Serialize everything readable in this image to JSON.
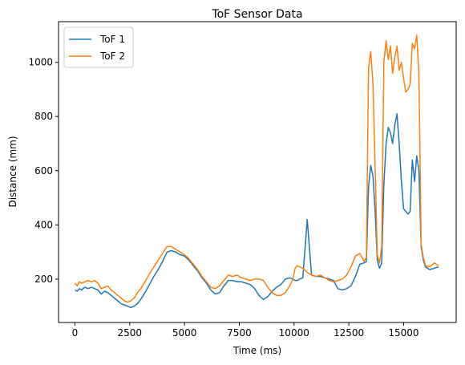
{
  "chart_data": {
    "type": "line",
    "title": "ToF Sensor Data",
    "xlabel": "Time (ms)",
    "ylabel": "Distance (mm)",
    "xlim": [
      -750,
      17400
    ],
    "ylim": [
      40,
      1150
    ],
    "xticks": [
      0,
      2500,
      5000,
      7500,
      10000,
      12500,
      15000
    ],
    "xtick_labels": [
      "0",
      "2500",
      "5000",
      "7500",
      "10000",
      "12500",
      "15000"
    ],
    "yticks": [
      200,
      400,
      600,
      800,
      1000
    ],
    "ytick_labels": [
      "200",
      "400",
      "600",
      "800",
      "1000"
    ],
    "grid": false,
    "legend_position": "top-left",
    "series": [
      {
        "name": "ToF 1",
        "color": "#1f77b4",
        "x": [
          0,
          100,
          200,
          300,
          450,
          600,
          750,
          900,
          1050,
          1200,
          1350,
          1500,
          1650,
          1800,
          1950,
          2100,
          2250,
          2400,
          2550,
          2700,
          2850,
          3000,
          3200,
          3400,
          3600,
          3800,
          4000,
          4200,
          4400,
          4600,
          4800,
          5000,
          5200,
          5400,
          5600,
          5800,
          6000,
          6200,
          6400,
          6600,
          6800,
          7000,
          7200,
          7400,
          7600,
          7800,
          8000,
          8200,
          8400,
          8600,
          8800,
          9000,
          9200,
          9400,
          9600,
          9800,
          9950,
          10050,
          10150,
          10250,
          10400,
          10600,
          10800,
          11000,
          11200,
          11400,
          11600,
          11800,
          12000,
          12200,
          12400,
          12600,
          12800,
          13000,
          13200,
          13300,
          13400,
          13500,
          13600,
          13700,
          13800,
          13900,
          14000,
          14100,
          14200,
          14300,
          14400,
          14500,
          14600,
          14700,
          14800,
          14900,
          15000,
          15100,
          15200,
          15300,
          15400,
          15500,
          15600,
          15700,
          15800,
          15900,
          16000,
          16200,
          16400,
          16600
        ],
        "y": [
          160,
          155,
          165,
          160,
          170,
          165,
          170,
          165,
          160,
          145,
          155,
          150,
          140,
          130,
          120,
          110,
          105,
          100,
          95,
          100,
          110,
          125,
          150,
          180,
          210,
          235,
          265,
          300,
          305,
          300,
          290,
          285,
          270,
          250,
          230,
          205,
          185,
          160,
          145,
          150,
          175,
          195,
          195,
          190,
          190,
          185,
          180,
          165,
          140,
          125,
          135,
          155,
          170,
          180,
          200,
          205,
          200,
          195,
          195,
          200,
          205,
          420,
          215,
          210,
          210,
          205,
          200,
          195,
          165,
          160,
          165,
          175,
          210,
          255,
          260,
          265,
          540,
          620,
          580,
          450,
          270,
          240,
          260,
          550,
          700,
          760,
          740,
          700,
          770,
          810,
          700,
          560,
          460,
          450,
          440,
          450,
          640,
          560,
          655,
          600,
          320,
          270,
          245,
          235,
          240,
          245
        ],
        "x_note": "sampled"
      },
      {
        "name": "ToF 2",
        "color": "#ff7f0e",
        "x": [
          0,
          100,
          200,
          300,
          450,
          600,
          750,
          900,
          1050,
          1200,
          1350,
          1500,
          1650,
          1800,
          1950,
          2100,
          2250,
          2400,
          2550,
          2700,
          2850,
          3000,
          3200,
          3400,
          3600,
          3800,
          4000,
          4200,
          4400,
          4600,
          4800,
          5000,
          5200,
          5400,
          5600,
          5800,
          6000,
          6200,
          6400,
          6600,
          6800,
          7000,
          7200,
          7400,
          7600,
          7800,
          8000,
          8200,
          8400,
          8600,
          8800,
          9000,
          9200,
          9400,
          9600,
          9800,
          9950,
          10050,
          10150,
          10250,
          10400,
          10600,
          10800,
          11000,
          11200,
          11400,
          11600,
          11800,
          12000,
          12200,
          12400,
          12600,
          12800,
          13000,
          13200,
          13300,
          13400,
          13500,
          13600,
          13700,
          13800,
          13900,
          14000,
          14100,
          14200,
          14300,
          14400,
          14500,
          14600,
          14700,
          14800,
          14900,
          15000,
          15100,
          15200,
          15300,
          15400,
          15500,
          15600,
          15700,
          15800,
          15900,
          16000,
          16200,
          16400,
          16600
        ],
        "y": [
          185,
          175,
          190,
          185,
          190,
          195,
          190,
          195,
          185,
          165,
          170,
          175,
          160,
          150,
          140,
          130,
          120,
          115,
          120,
          130,
          150,
          165,
          190,
          220,
          245,
          270,
          295,
          320,
          320,
          310,
          300,
          290,
          275,
          255,
          235,
          210,
          190,
          170,
          165,
          175,
          195,
          215,
          210,
          215,
          205,
          200,
          195,
          200,
          200,
          195,
          170,
          150,
          140,
          140,
          150,
          175,
          200,
          240,
          250,
          245,
          240,
          225,
          215,
          210,
          215,
          205,
          195,
          190,
          195,
          200,
          215,
          245,
          285,
          295,
          265,
          280,
          980,
          1040,
          920,
          620,
          290,
          260,
          320,
          1000,
          1080,
          1010,
          1060,
          960,
          1020,
          1060,
          970,
          1000,
          940,
          890,
          900,
          920,
          1070,
          1050,
          1100,
          960,
          330,
          280,
          250,
          245,
          260,
          250
        ],
        "x_note": "sampled"
      }
    ]
  }
}
